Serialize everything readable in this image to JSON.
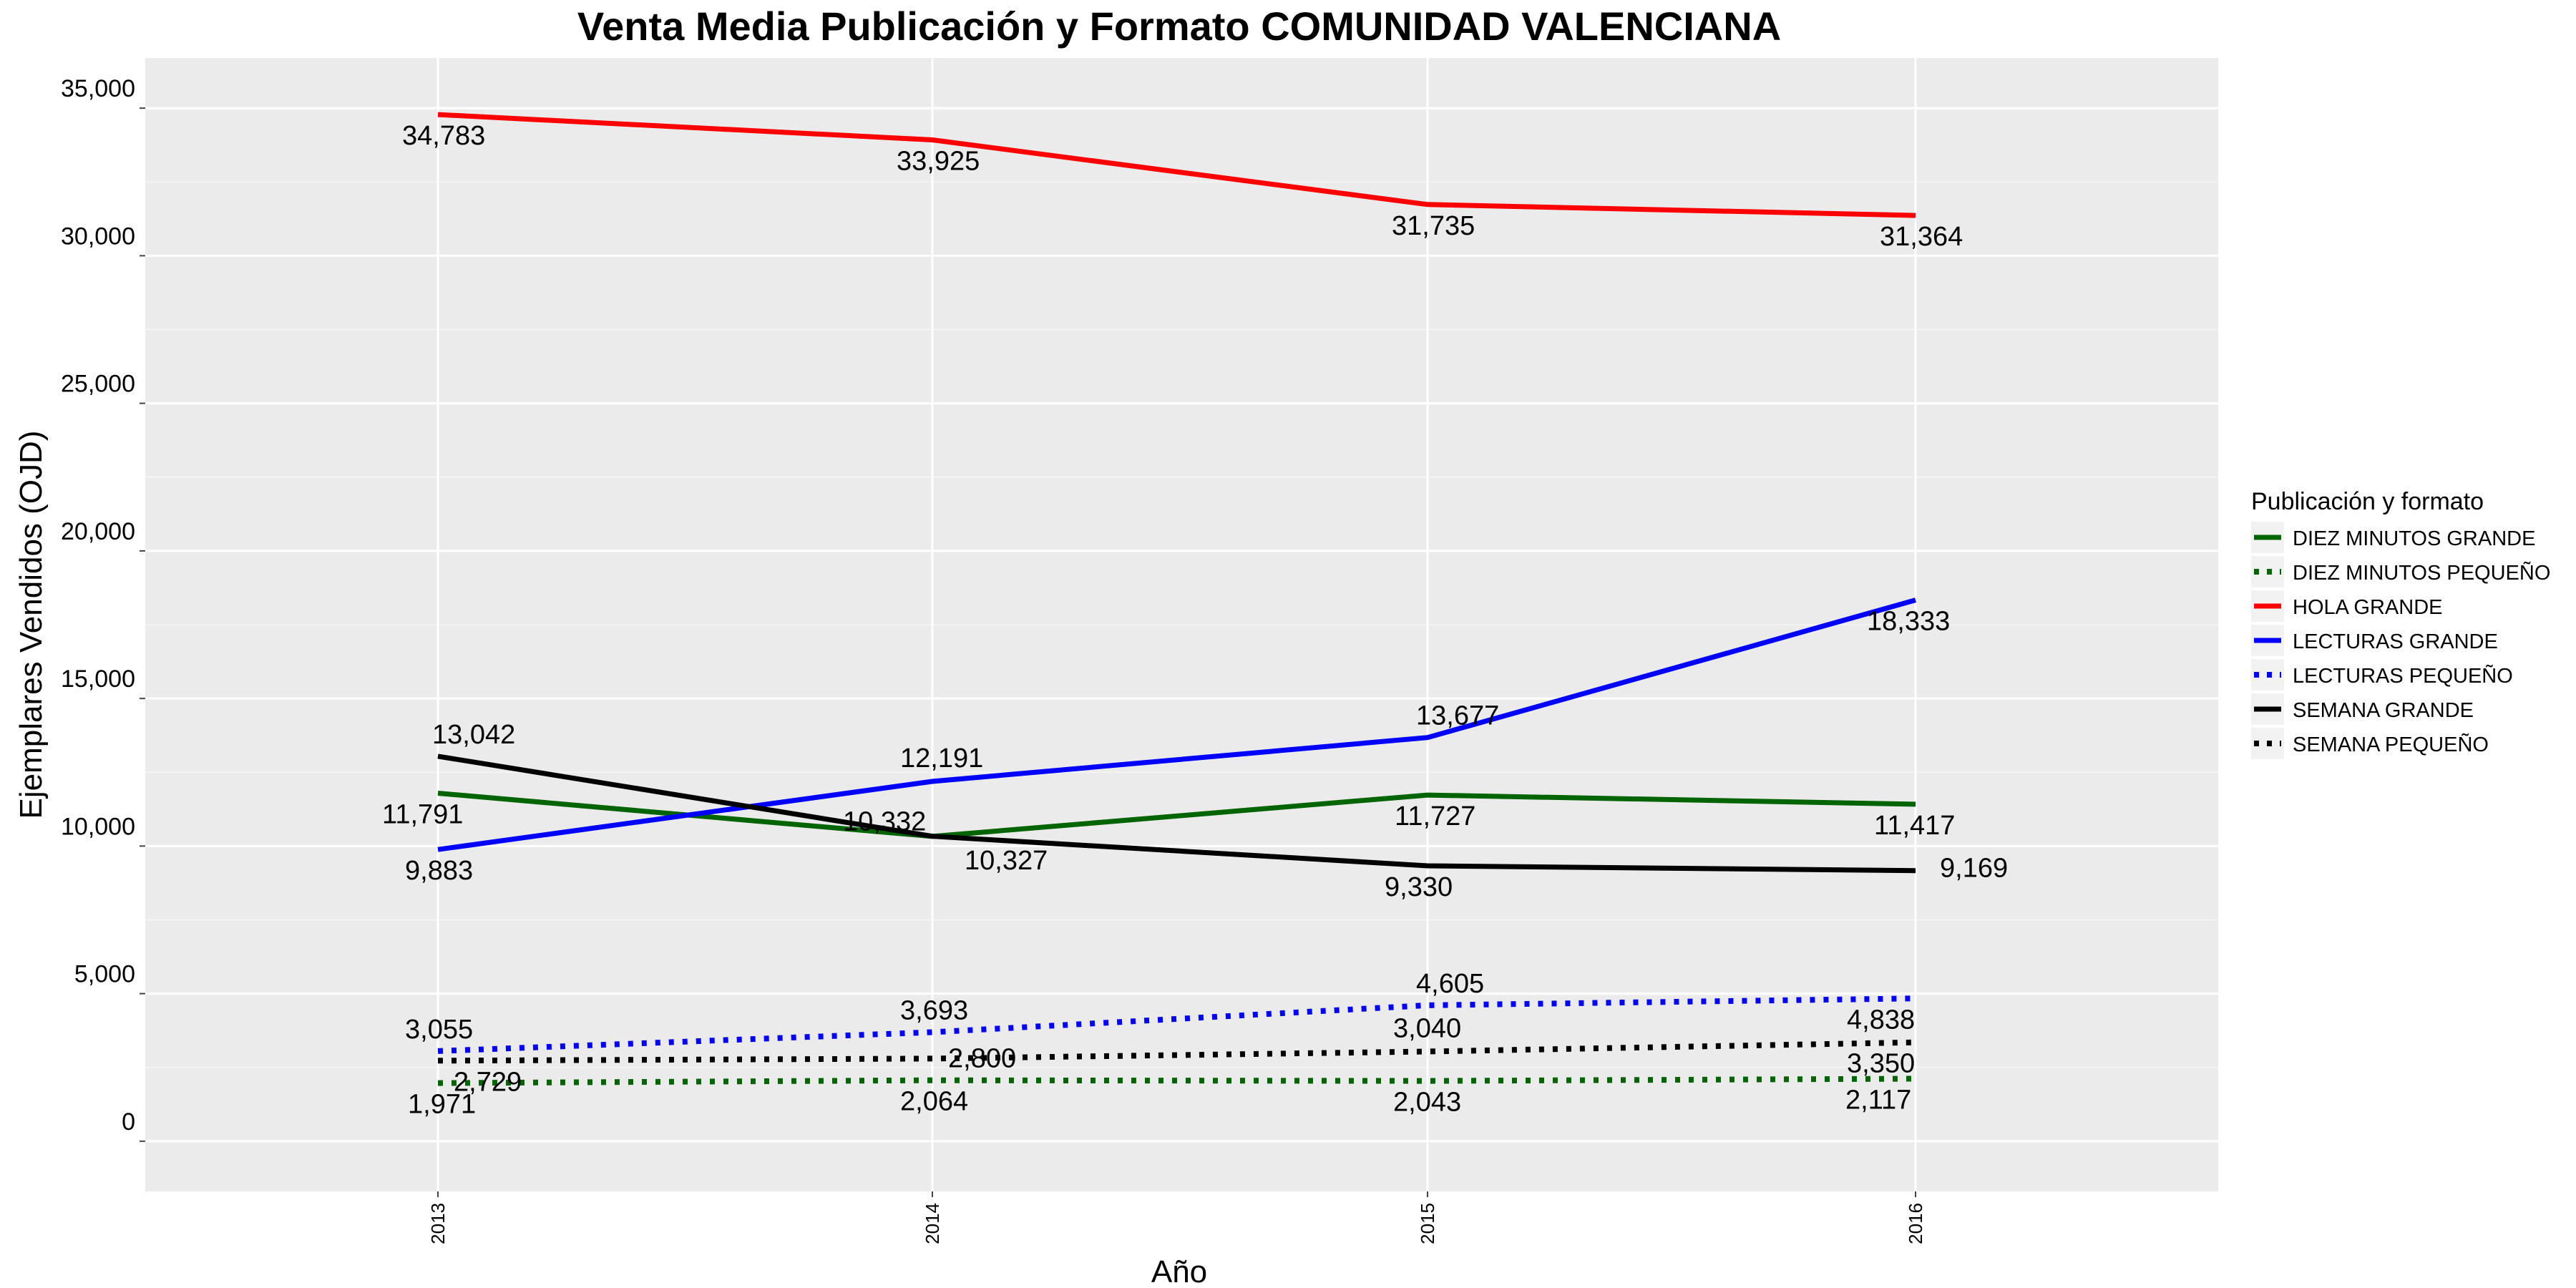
{
  "chart_data": {
    "type": "line",
    "title": "Venta Media Publicación y Formato  COMUNIDAD VALENCIANA",
    "xlabel": "Año",
    "ylabel": "Ejemplares Vendidos (OJD)",
    "x": [
      "2013",
      "2014",
      "2015",
      "2016"
    ],
    "ylim": [
      -1700,
      36700
    ],
    "yticks": [
      0,
      5000,
      10000,
      15000,
      20000,
      25000,
      30000,
      35000
    ],
    "ytick_labels": [
      "0",
      "5,000",
      "10,000",
      "15,000",
      "20,000",
      "25,000",
      "30,000",
      "35,000"
    ],
    "grid": true,
    "legend": {
      "title": "Publicación y formato",
      "placement": "right"
    },
    "series": [
      {
        "name": "DIEZ MINUTOS GRANDE",
        "color": "#006400",
        "dash": "solid",
        "values": [
          11791,
          10327,
          11727,
          11417
        ],
        "labels": [
          "11,791",
          "10,327",
          "11,727",
          "11,417"
        ]
      },
      {
        "name": "DIEZ MINUTOS PEQUEÑO",
        "color": "#006400",
        "dash": "dotted",
        "values": [
          1971,
          2064,
          2043,
          2117
        ],
        "labels": [
          "1,971",
          "2,064",
          "2,043",
          "2,117"
        ]
      },
      {
        "name": "HOLA GRANDE",
        "color": "#ff0000",
        "dash": "solid",
        "values": [
          34783,
          33925,
          31735,
          31364
        ],
        "labels": [
          "34,783",
          "33,925",
          "31,735",
          "31,364"
        ]
      },
      {
        "name": "LECTURAS GRANDE",
        "color": "#0000ff",
        "dash": "solid",
        "values": [
          9883,
          12191,
          13677,
          18333
        ],
        "labels": [
          "9,883",
          "12,191",
          "13,677",
          "18,333"
        ]
      },
      {
        "name": "LECTURAS PEQUEÑO",
        "color": "#0000ff",
        "dash": "dotted",
        "values": [
          3055,
          3693,
          4605,
          4838
        ],
        "labels": [
          "3,055",
          "3,693",
          "4,605",
          "4,838"
        ]
      },
      {
        "name": "SEMANA GRANDE",
        "color": "#000000",
        "dash": "solid",
        "values": [
          13042,
          10332,
          9330,
          9169
        ],
        "labels": [
          "13,042",
          "10,332",
          "9,330",
          "9,169"
        ]
      },
      {
        "name": "SEMANA PEQUEÑO",
        "color": "#000000",
        "dash": "dotted",
        "values": [
          2729,
          2800,
          3040,
          3350
        ],
        "labels": [
          "2,729",
          "2,800",
          "3,040",
          "3,350"
        ]
      }
    ]
  }
}
